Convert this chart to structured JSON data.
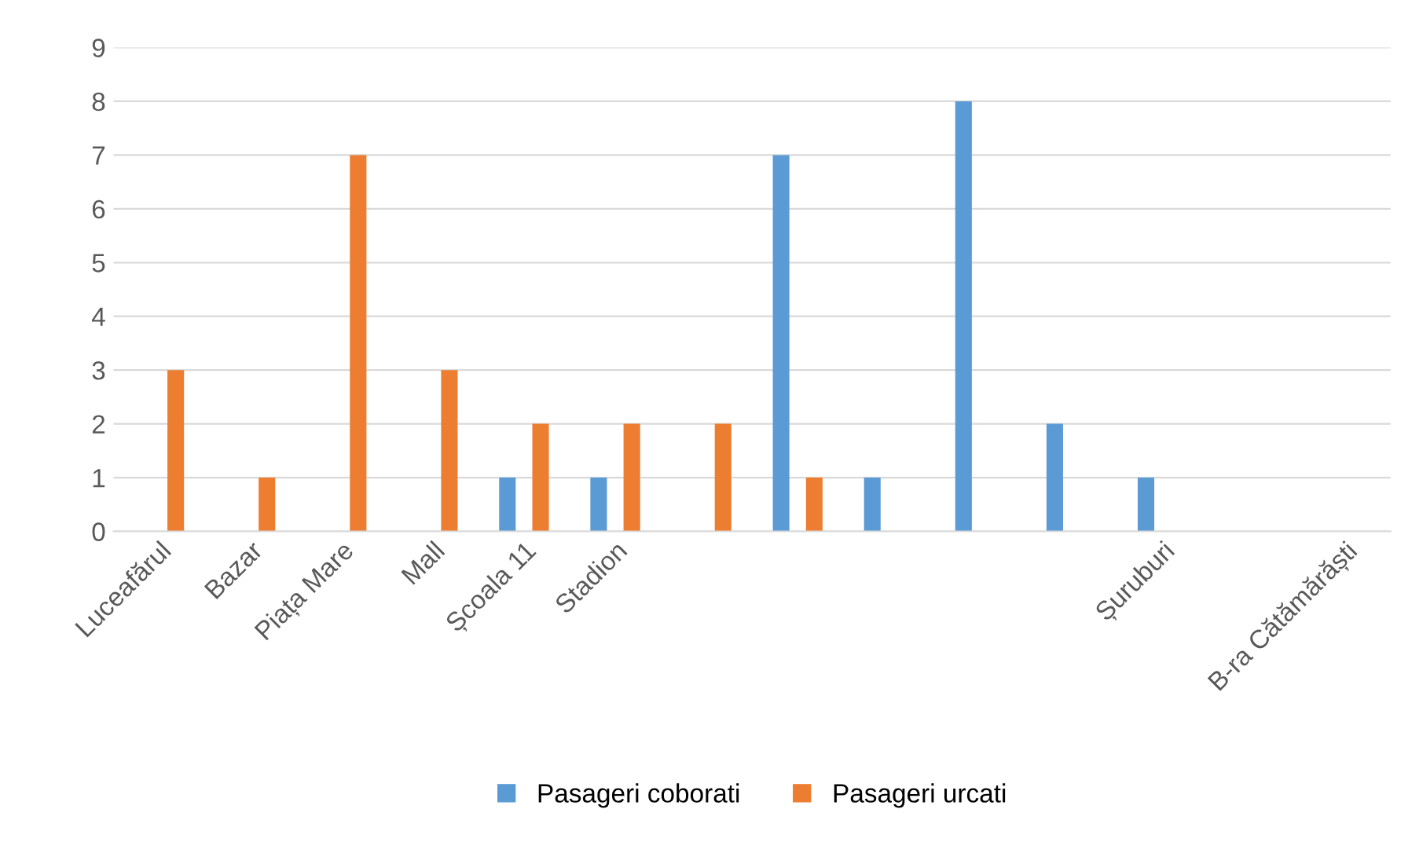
{
  "chart_data": {
    "type": "bar",
    "categories": [
      "Luceafărul",
      "Bazar",
      "Piața Mare",
      "Mall",
      "Școala 11",
      "Stadion",
      null,
      null,
      null,
      null,
      null,
      "Șuruburi",
      null,
      "B-ra Cătămărăști"
    ],
    "series": [
      {
        "name": "Pasageri coborati",
        "color": "#5b9bd5",
        "values": [
          0,
          0,
          0,
          0,
          1,
          1,
          0,
          7,
          1,
          8,
          2,
          1,
          0,
          0
        ]
      },
      {
        "name": "Pasageri urcati",
        "color": "#ed7d31",
        "values": [
          3,
          1,
          7,
          3,
          2,
          2,
          2,
          1,
          0,
          0,
          0,
          0,
          0,
          0
        ]
      }
    ],
    "ylim": [
      0,
      9
    ],
    "yticks": [
      0,
      1,
      2,
      3,
      4,
      5,
      6,
      7,
      8,
      9
    ],
    "grid": "y",
    "legend": "bottom"
  }
}
